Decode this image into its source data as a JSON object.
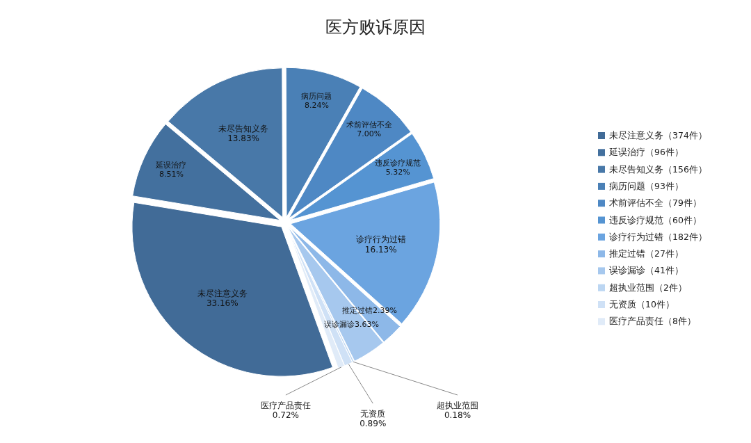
{
  "chart_data": {
    "type": "pie",
    "title": "医方败诉原因",
    "categories": [
      "未尽注意义务（374件）",
      "延误治疗（96件）",
      "未尽告知义务（156件）",
      "病历问题（93件）",
      "术前评估不全（79件）",
      "违反诊疗规范（60件）",
      "诊疗行为过错（182件）",
      "推定过错（27件）",
      "误诊漏诊（41件）",
      "超执业范围（2件）",
      "无资质（10件）",
      "医疗产品责任（8件）"
    ],
    "values": [
      374,
      96,
      156,
      93,
      79,
      60,
      182,
      27,
      41,
      2,
      10,
      8
    ],
    "value_labels": [
      "未尽注意义务\n33.16%",
      "延误治疗\n8.51%",
      "未尽告知义务\n13.83%",
      "病历问题\n8.24%",
      "术前评估不全\n7.00%",
      "违反诊疗规范\n5.32%",
      "诊疗行为过错\n16.13%",
      "推定过错2.39%",
      "误诊漏诊3.63%",
      "超执业范围\n0.18%",
      "无资质\n0.89%",
      "医疗产品责任\n0.72%"
    ],
    "colors": [
      "#416b97",
      "#43709e",
      "#4878a8",
      "#4a80b6",
      "#4e88c4",
      "#5594d2",
      "#6ba4e0",
      "#8db8e8",
      "#a6c8ee",
      "#bcd6f2",
      "#cfe1f6",
      "#e0ebf8"
    ],
    "legend": "right"
  }
}
